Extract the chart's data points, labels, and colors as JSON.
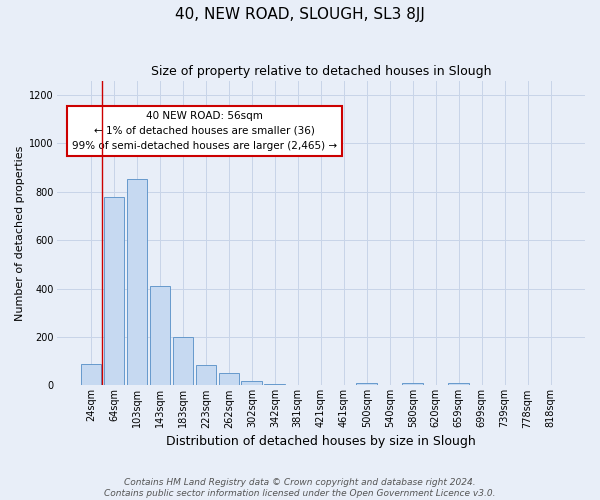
{
  "title": "40, NEW ROAD, SLOUGH, SL3 8JJ",
  "subtitle": "Size of property relative to detached houses in Slough",
  "xlabel": "Distribution of detached houses by size in Slough",
  "ylabel": "Number of detached properties",
  "footnote1": "Contains HM Land Registry data © Crown copyright and database right 2024.",
  "footnote2": "Contains public sector information licensed under the Open Government Licence v3.0.",
  "bar_labels": [
    "24sqm",
    "64sqm",
    "103sqm",
    "143sqm",
    "183sqm",
    "223sqm",
    "262sqm",
    "302sqm",
    "342sqm",
    "381sqm",
    "421sqm",
    "461sqm",
    "500sqm",
    "540sqm",
    "580sqm",
    "620sqm",
    "659sqm",
    "699sqm",
    "739sqm",
    "778sqm",
    "818sqm"
  ],
  "bar_values": [
    90,
    780,
    855,
    410,
    200,
    85,
    52,
    20,
    5,
    2,
    0,
    0,
    8,
    0,
    8,
    0,
    8,
    0,
    0,
    0,
    0
  ],
  "bar_color": "#c6d9f1",
  "bar_edgecolor": "#6699cc",
  "ylim": [
    0,
    1260
  ],
  "yticks": [
    0,
    200,
    400,
    600,
    800,
    1000,
    1200
  ],
  "annotation_title": "40 NEW ROAD: 56sqm",
  "annotation_line1": "← 1% of detached houses are smaller (36)",
  "annotation_line2": "99% of semi-detached houses are larger (2,465) →",
  "annotation_box_color": "#ffffff",
  "annotation_box_edgecolor": "#cc0000",
  "grid_color": "#c8d4e8",
  "bg_color": "#e8eef8",
  "title_fontsize": 11,
  "subtitle_fontsize": 9,
  "xlabel_fontsize": 9,
  "ylabel_fontsize": 8,
  "tick_fontsize": 7,
  "footnote_fontsize": 6.5
}
